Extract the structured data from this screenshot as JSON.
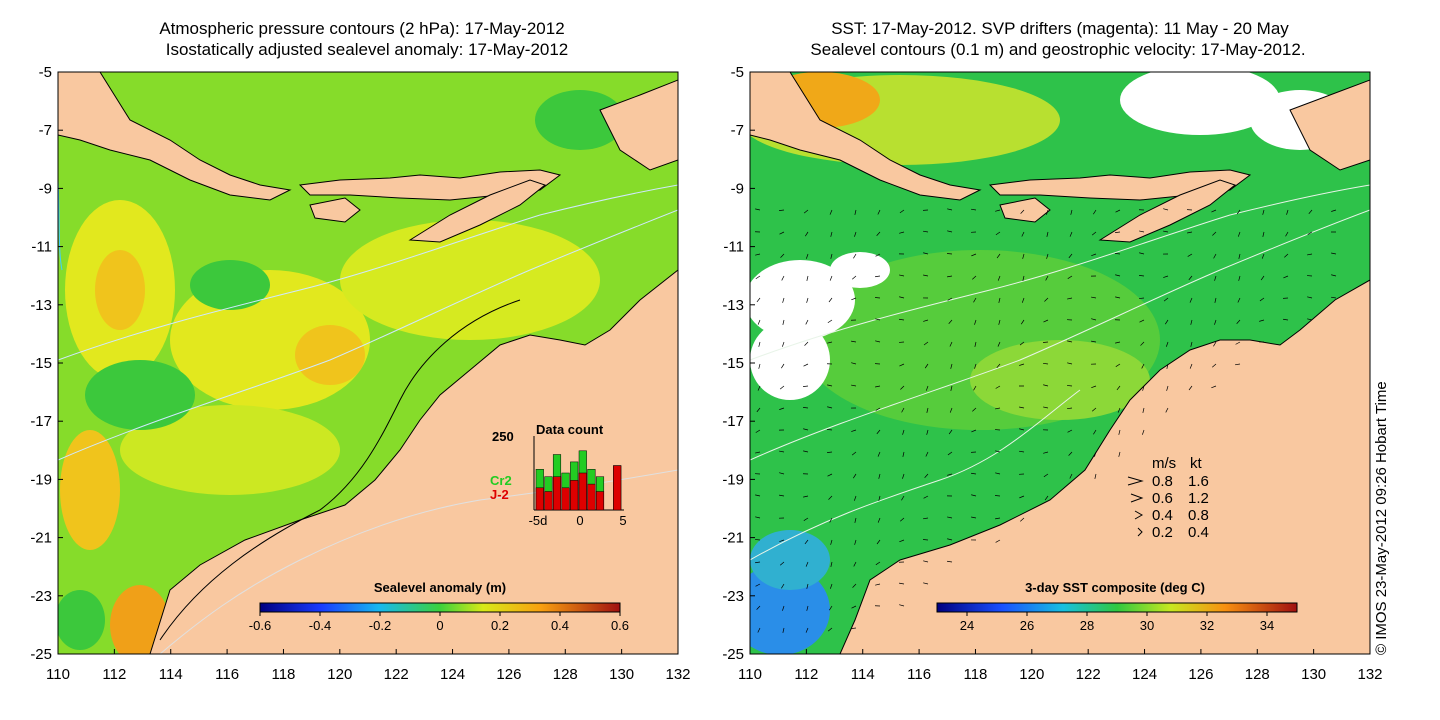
{
  "left_panel": {
    "title_line1": "Atmospheric pressure contours (2 hPa): 17-May-2012",
    "title_line2": "Isostatically adjusted sealevel anomaly: 17-May-2012",
    "colorbar": {
      "label": "Sealevel anomaly (m)",
      "ticks": [
        "-0.6",
        "-0.4",
        "-0.2",
        "0",
        "0.2",
        "0.4",
        "0.6"
      ]
    },
    "data_count": {
      "title": "Data count",
      "ymax_label": "250",
      "x_ticks": [
        "-5d",
        "0",
        "5"
      ],
      "legend_cr2": "Cr2",
      "legend_j2": "J-2",
      "colors": {
        "cr2": "#22cc22",
        "j2": "#dd0000"
      },
      "bars_total_fraction": [
        0.55,
        0.45,
        0.75,
        0.5,
        0.65,
        0.8,
        0.55,
        0.45,
        0.0,
        0.6
      ],
      "bars_j2_fraction": [
        0.3,
        0.25,
        0.45,
        0.3,
        0.4,
        0.5,
        0.35,
        0.25,
        0.0,
        0.6
      ]
    }
  },
  "right_panel": {
    "title_line1": "SST: 17-May-2012. SVP drifters (magenta): 11 May - 20 May",
    "title_line2": "Sealevel contours (0.1 m) and geostrophic velocity: 17-May-2012.",
    "colorbar": {
      "label": "3-day SST composite (deg C)",
      "ticks": [
        "24",
        "26",
        "28",
        "30",
        "32",
        "34"
      ]
    },
    "velocity_legend": {
      "header_ms": "m/s",
      "header_kt": "kt",
      "rows": [
        {
          "ms": "0.8",
          "kt": "1.6"
        },
        {
          "ms": "0.6",
          "kt": "1.2"
        },
        {
          "ms": "0.4",
          "kt": "0.8"
        },
        {
          "ms": "0.2",
          "kt": "0.4"
        }
      ]
    }
  },
  "axes": {
    "y_ticks": [
      "-5",
      "-7",
      "-9",
      "-11",
      "-13",
      "-15",
      "-17",
      "-19",
      "-21",
      "-23",
      "-25"
    ],
    "x_ticks": [
      "110",
      "112",
      "114",
      "116",
      "118",
      "120",
      "122",
      "124",
      "126",
      "128",
      "130",
      "132"
    ]
  },
  "credit": "© IMOS 23-May-2012 09:26 Hobart Time",
  "colors": {
    "land": "#f9c8a0",
    "ocean_green": "#7cdc2a",
    "ocean_yellow": "#e0ea1c",
    "sst_green": "#2cc24a",
    "cloud": "#ffffff"
  }
}
